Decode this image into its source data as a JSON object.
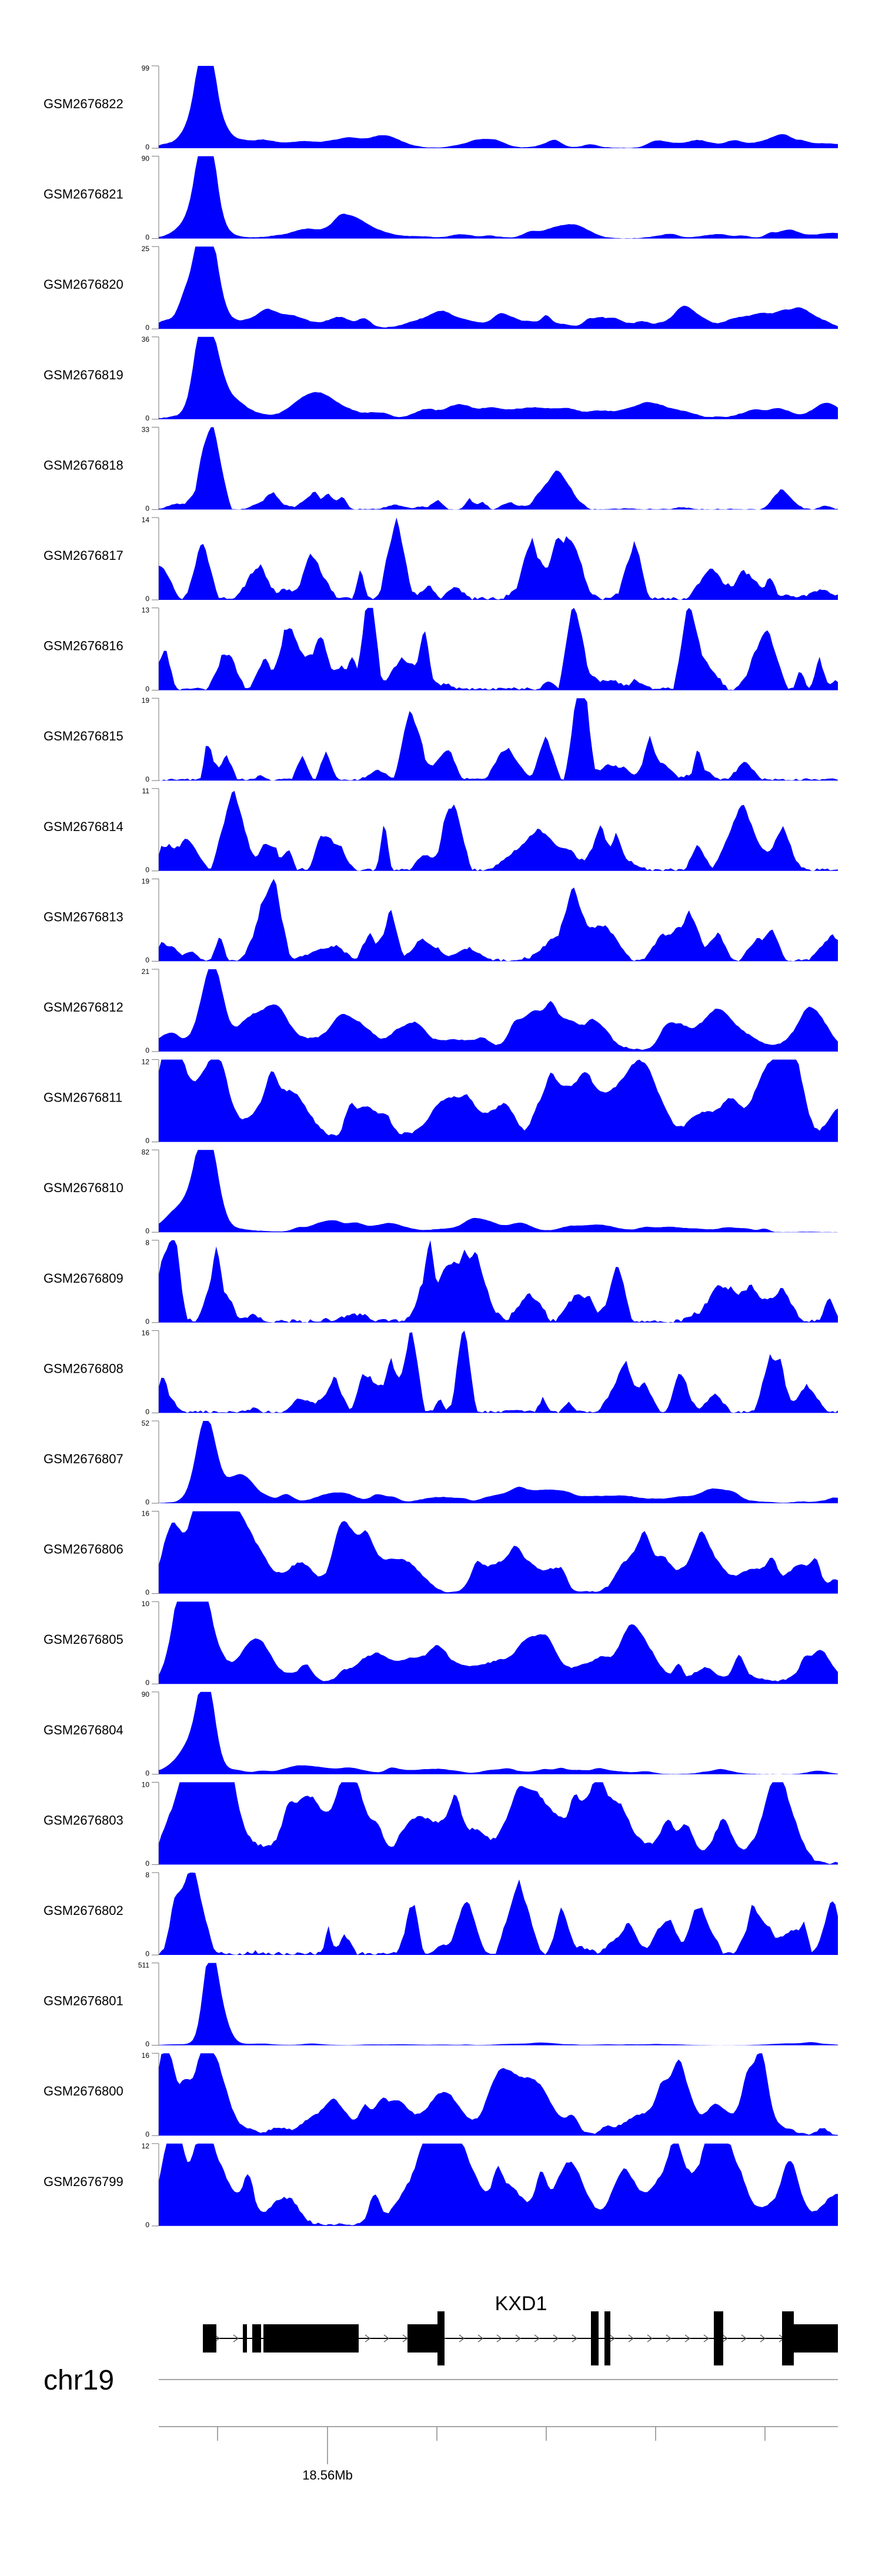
{
  "chart_data": {
    "type": "area",
    "title": "",
    "chromosome": "chr19",
    "xlabel": "",
    "ylabel": "",
    "x_tick_label": "18.56Mb",
    "colors": {
      "signal": "#0000ff",
      "gene": "#000000",
      "axis": "#888888"
    },
    "gene": {
      "name": "KXD1",
      "strand": "+"
    },
    "tracks": [
      {
        "name": "GSM2676822",
        "ymax": "99",
        "ymin": "0",
        "peaks": [
          [
            0.07,
            1.0,
            0.012
          ],
          [
            0.065,
            0.45,
            0.02
          ]
        ],
        "noise": 0.06,
        "style": "smooth"
      },
      {
        "name": "GSM2676821",
        "ymax": "90",
        "ymin": "0",
        "peaks": [
          [
            0.07,
            1.0,
            0.012
          ],
          [
            0.065,
            0.4,
            0.02
          ]
        ],
        "noise": 0.06,
        "style": "smooth"
      },
      {
        "name": "GSM2676820",
        "ymax": "25",
        "ymin": "0",
        "peaks": [
          [
            0.07,
            1.0,
            0.014
          ],
          [
            0.06,
            0.5,
            0.02
          ]
        ],
        "noise": 0.1,
        "style": "smooth"
      },
      {
        "name": "GSM2676819",
        "ymax": "36",
        "ymin": "0",
        "peaks": [
          [
            0.065,
            0.95,
            0.012
          ],
          [
            0.085,
            0.5,
            0.015
          ]
        ],
        "noise": 0.1,
        "style": "smooth"
      },
      {
        "name": "GSM2676818",
        "ymax": "33",
        "ymin": "0",
        "peaks": [
          [
            0.08,
            0.95,
            0.012
          ],
          [
            0.59,
            0.3,
            0.02
          ]
        ],
        "noise": 0.15,
        "style": "spiky"
      },
      {
        "name": "GSM2676817",
        "ymax": "14",
        "ymin": "0",
        "peaks": [
          [
            0.35,
            1.0,
            0.01
          ],
          [
            0.55,
            0.6,
            0.01
          ],
          [
            0.7,
            0.6,
            0.01
          ]
        ],
        "noise": 0.45,
        "style": "spiky"
      },
      {
        "name": "GSM2676816",
        "ymax": "13",
        "ymin": "0",
        "peaks": [
          [
            0.31,
            1.0,
            0.008
          ],
          [
            0.78,
            1.0,
            0.01
          ],
          [
            0.61,
            0.9,
            0.01
          ]
        ],
        "noise": 0.45,
        "style": "spiky"
      },
      {
        "name": "GSM2676815",
        "ymax": "19",
        "ymin": "0",
        "peaks": [
          [
            0.62,
            1.0,
            0.01
          ],
          [
            0.37,
            0.7,
            0.01
          ],
          [
            0.57,
            0.55,
            0.01
          ]
        ],
        "noise": 0.35,
        "style": "spiky"
      },
      {
        "name": "GSM2676814",
        "ymax": "11",
        "ymin": "0",
        "peaks": [
          [
            0.11,
            1.0,
            0.015
          ],
          [
            0.86,
            0.7,
            0.02
          ],
          [
            0.56,
            0.5,
            0.03
          ]
        ],
        "noise": 0.4,
        "style": "spiky"
      },
      {
        "name": "GSM2676813",
        "ymax": "19",
        "ymin": "0",
        "peaks": [
          [
            0.17,
            1.0,
            0.01
          ],
          [
            0.61,
            0.8,
            0.01
          ],
          [
            0.78,
            0.55,
            0.01
          ]
        ],
        "noise": 0.4,
        "style": "spiky"
      },
      {
        "name": "GSM2676812",
        "ymax": "21",
        "ymin": "0",
        "peaks": [
          [
            0.08,
            1.0,
            0.015
          ],
          [
            0.82,
            0.45,
            0.02
          ]
        ],
        "noise": 0.2,
        "style": "smooth"
      },
      {
        "name": "GSM2676811",
        "ymax": "12",
        "ymin": "0",
        "peaks": [
          [
            0.02,
            1.0,
            0.015
          ],
          [
            0.08,
            0.9,
            0.02
          ]
        ],
        "noise": 0.4,
        "style": "smooth"
      },
      {
        "name": "GSM2676810",
        "ymax": "82",
        "ymin": "0",
        "peaks": [
          [
            0.07,
            0.95,
            0.014
          ],
          [
            0.05,
            0.4,
            0.03
          ]
        ],
        "noise": 0.05,
        "style": "smooth"
      },
      {
        "name": "GSM2676809",
        "ymax": "8",
        "ymin": "0",
        "peaks": [
          [
            0.02,
            1.0,
            0.01
          ],
          [
            0.45,
            0.8,
            0.02
          ]
        ],
        "noise": 0.55,
        "style": "spiky"
      },
      {
        "name": "GSM2676808",
        "ymax": "16",
        "ymin": "0",
        "peaks": [
          [
            0.45,
            1.0,
            0.008
          ],
          [
            0.9,
            0.7,
            0.01
          ],
          [
            0.37,
            0.75,
            0.01
          ]
        ],
        "noise": 0.4,
        "style": "spiky"
      },
      {
        "name": "GSM2676807",
        "ymax": "52",
        "ymin": "0",
        "peaks": [
          [
            0.07,
            1.0,
            0.014
          ],
          [
            0.12,
            0.3,
            0.02
          ]
        ],
        "noise": 0.06,
        "style": "smooth"
      },
      {
        "name": "GSM2676806",
        "ymax": "16",
        "ymin": "0",
        "peaks": [
          [
            0.07,
            1.0,
            0.014
          ],
          [
            0.02,
            0.8,
            0.015
          ]
        ],
        "noise": 0.3,
        "style": "smooth"
      },
      {
        "name": "GSM2676805",
        "ymax": "10",
        "ymin": "0",
        "peaks": [
          [
            0.05,
            1.0,
            0.012
          ],
          [
            0.03,
            0.7,
            0.015
          ]
        ],
        "noise": 0.25,
        "style": "smooth"
      },
      {
        "name": "GSM2676804",
        "ymax": "90",
        "ymin": "0",
        "peaks": [
          [
            0.07,
            1.0,
            0.012
          ],
          [
            0.05,
            0.35,
            0.02
          ]
        ],
        "noise": 0.04,
        "style": "smooth"
      },
      {
        "name": "GSM2676803",
        "ymax": "10",
        "ymin": "0",
        "peaks": [
          [
            0.04,
            1.0,
            0.015
          ],
          [
            0.1,
            0.8,
            0.02
          ]
        ],
        "noise": 0.45,
        "style": "smooth"
      },
      {
        "name": "GSM2676802",
        "ymax": "8",
        "ymin": "0",
        "peaks": [
          [
            0.05,
            1.0,
            0.015
          ],
          [
            0.53,
            0.9,
            0.015
          ]
        ],
        "noise": 0.5,
        "style": "spiky"
      },
      {
        "name": "GSM2676801",
        "ymax": "511",
        "ymin": "0",
        "peaks": [
          [
            0.075,
            1.0,
            0.01
          ],
          [
            0.09,
            0.4,
            0.012
          ]
        ],
        "noise": 0.01,
        "style": "smooth"
      },
      {
        "name": "GSM2676800",
        "ymax": "16",
        "ymin": "0",
        "peaks": [
          [
            0.01,
            1.0,
            0.012
          ],
          [
            0.08,
            0.7,
            0.02
          ]
        ],
        "noise": 0.3,
        "style": "smooth"
      },
      {
        "name": "GSM2676799",
        "ymax": "12",
        "ymin": "0",
        "peaks": [
          [
            0.07,
            1.0,
            0.015
          ],
          [
            0.02,
            0.8,
            0.015
          ]
        ],
        "noise": 0.4,
        "style": "smooth"
      }
    ]
  }
}
